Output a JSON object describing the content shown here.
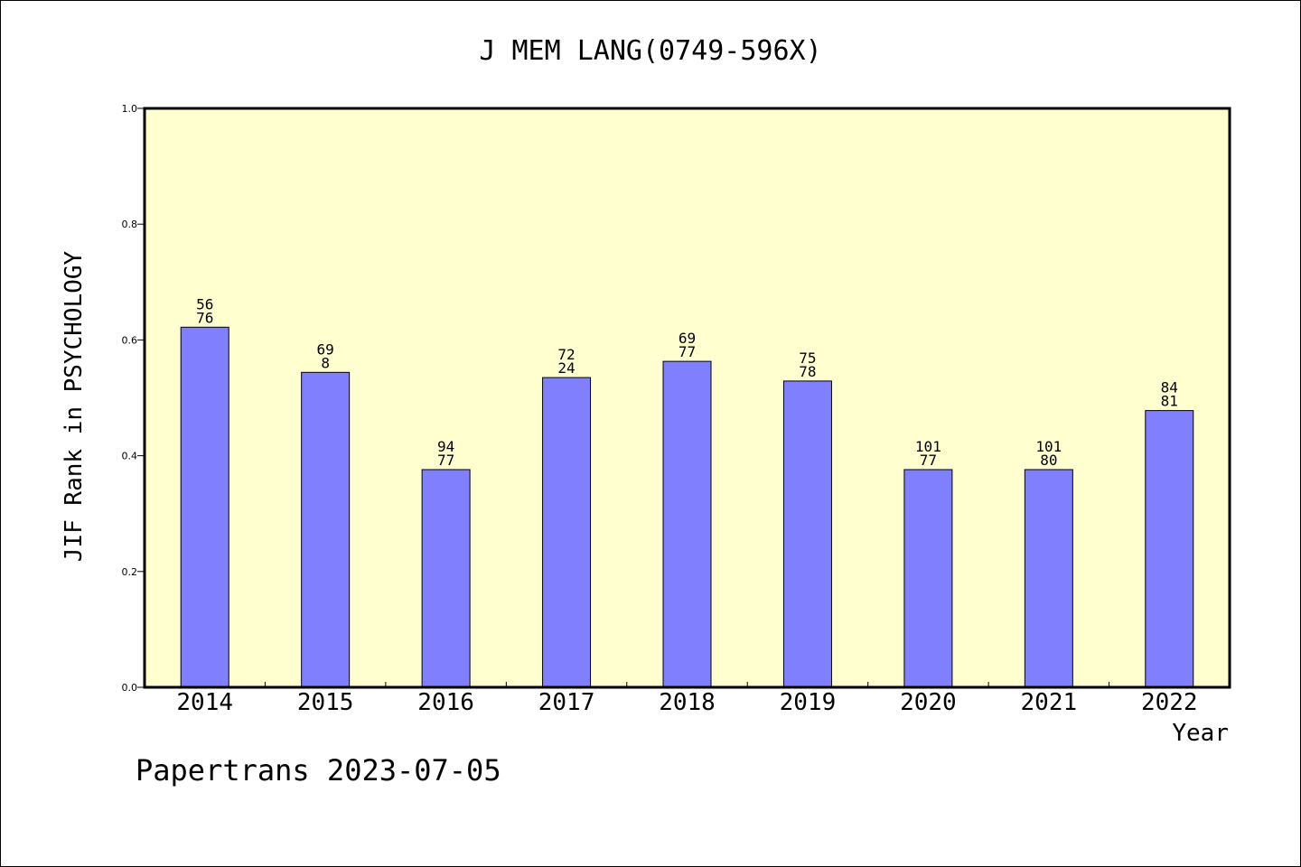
{
  "title": "J MEM LANG(0749-596X)",
  "footer": "Papertrans 2023-07-05",
  "colors": {
    "plot_background": "#ffffd0",
    "bar_fill": "#8080ff",
    "bar_stroke": "#000000",
    "frame": "#000000"
  },
  "chart_data": {
    "type": "bar",
    "title": "J MEM LANG(0749-596X)",
    "xlabel": "Year",
    "ylabel": "JIF Rank in PSYCHOLOGY",
    "ylim": [
      0,
      1.0
    ],
    "yticks": [
      "0.0",
      "0.2",
      "0.4",
      "0.6",
      "0.8",
      "1.0"
    ],
    "grid": false,
    "categories": [
      "2014",
      "2015",
      "2016",
      "2017",
      "2018",
      "2019",
      "2020",
      "2021",
      "2022"
    ],
    "values": [
      0.622,
      0.544,
      0.376,
      0.535,
      0.563,
      0.529,
      0.376,
      0.376,
      0.478
    ],
    "labels": [
      [
        "56",
        "76"
      ],
      [
        "69",
        "8"
      ],
      [
        "94",
        "77"
      ],
      [
        "72",
        "24"
      ],
      [
        "69",
        "77"
      ],
      [
        "75",
        "78"
      ],
      [
        "101",
        "77"
      ],
      [
        "101",
        "80"
      ],
      [
        "84",
        "81"
      ]
    ]
  }
}
